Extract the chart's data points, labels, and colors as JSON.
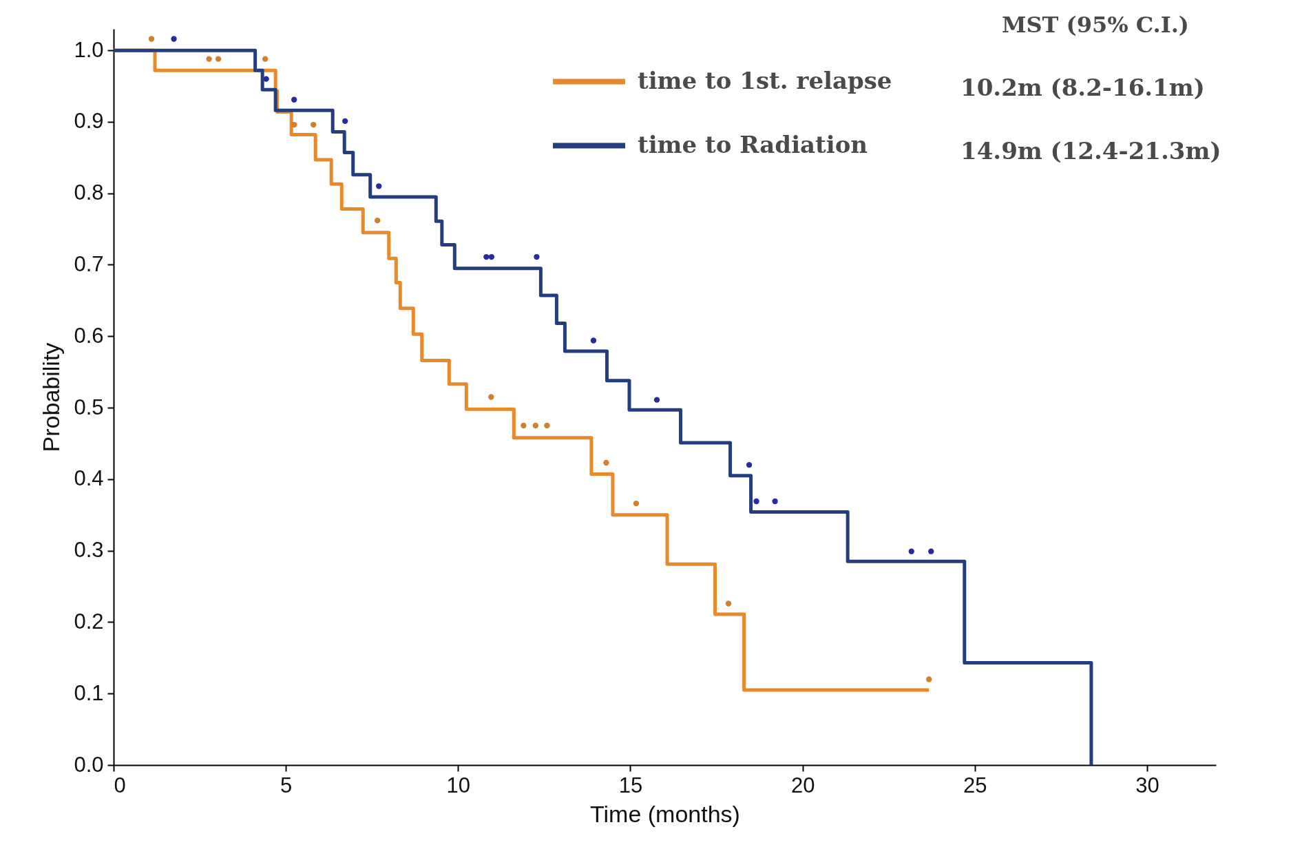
{
  "chart_data": {
    "type": "step",
    "xlabel": "Time (months)",
    "ylabel": "Probability",
    "xlim": [
      0,
      32
    ],
    "xticks": [
      0,
      5,
      10,
      15,
      20,
      25,
      30
    ],
    "ylim": [
      0,
      1.03
    ],
    "yticks": [
      {
        "value": 0,
        "label": "0.0"
      },
      0.1,
      0.2,
      0.3,
      0.4,
      0.5,
      0.6,
      0.7,
      0.8,
      0.9,
      {
        "value": 1,
        "label": "1.0"
      }
    ],
    "grid": false,
    "legend": "top right",
    "marker": "none",
    "line_style": "solid",
    "annotations": [
      "MST (95% C.I.)",
      "10.2m (8.2-16.1m)",
      "14.9m (12.4-21.3m)"
    ],
    "series": [
      {
        "name": "time to 1st. relapse",
        "color": "#e8892a",
        "x": [
          0,
          1.2,
          4.7,
          4.75,
          5.16,
          5.86,
          6.32,
          6.62,
          7.24,
          7.99,
          8.2,
          8.32,
          8.7,
          8.95,
          9.74,
          10.24,
          11.62,
          13.87,
          14.49,
          16.07,
          17.46,
          18.3,
          23.67
        ],
        "values": [
          1.0,
          0.972,
          0.943,
          0.914,
          0.882,
          0.847,
          0.813,
          0.778,
          0.745,
          0.709,
          0.675,
          0.639,
          0.603,
          0.566,
          0.533,
          0.498,
          0.458,
          0.407,
          0.35,
          0.281,
          0.211,
          0.105,
          0.105
        ]
      },
      {
        "name": "time to Radiation",
        "color": "#233d7f",
        "x": [
          0,
          4.11,
          4.32,
          4.7,
          6.36,
          6.7,
          6.95,
          7.45,
          9.36,
          9.53,
          9.9,
          12.4,
          12.86,
          13.1,
          14.32,
          14.97,
          16.46,
          17.9,
          18.5,
          21.31,
          24.7,
          28.38
        ],
        "values": [
          1.0,
          0.972,
          0.945,
          0.916,
          0.886,
          0.857,
          0.826,
          0.795,
          0.761,
          0.728,
          0.695,
          0.657,
          0.618,
          0.579,
          0.538,
          0.497,
          0.451,
          0.405,
          0.354,
          0.285,
          0.143,
          0
        ]
      },
      {
        "type": "scatter",
        "marker": "circle",
        "color": "#d08030",
        "x": [
          1.1,
          2.77,
          3.04,
          4.4,
          5.24,
          5.8,
          7.66,
          10.96,
          11.9,
          12.25,
          12.58,
          14.3,
          15.17,
          17.85,
          23.67
        ],
        "values": [
          1.016,
          0.988,
          0.988,
          0.988,
          0.896,
          0.896,
          0.762,
          0.515,
          0.475,
          0.475,
          0.475,
          0.423,
          0.366,
          0.226,
          0.12
        ]
      },
      {
        "type": "scatter",
        "marker": "circle",
        "color": "#2a2aa0",
        "x": [
          1.75,
          4.43,
          5.24,
          6.72,
          7.7,
          10.82,
          10.97,
          12.28,
          13.93,
          15.77,
          18.45,
          18.66,
          19.2,
          23.16,
          23.73
        ],
        "values": [
          1.016,
          0.96,
          0.931,
          0.901,
          0.81,
          0.711,
          0.711,
          0.711,
          0.594,
          0.511,
          0.42,
          0.369,
          0.369,
          0.299,
          0.299
        ]
      }
    ]
  }
}
